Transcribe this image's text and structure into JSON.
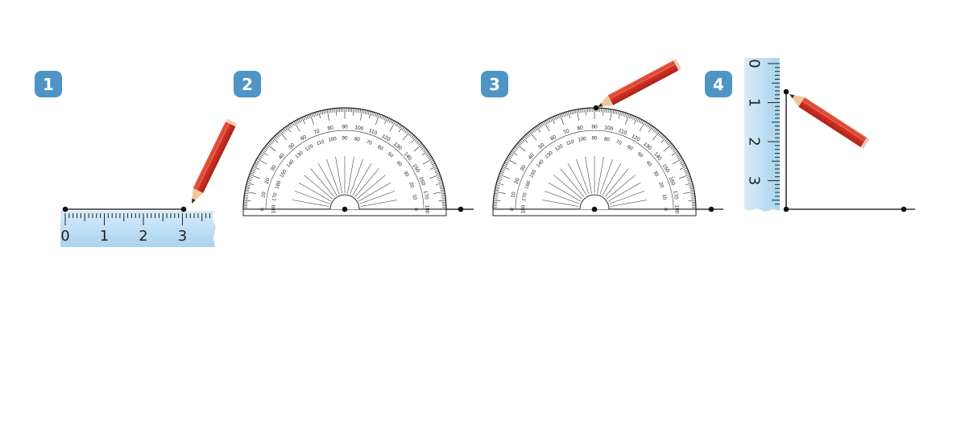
{
  "steps": [
    {
      "number": "1"
    },
    {
      "number": "2"
    },
    {
      "number": "3"
    },
    {
      "number": "4"
    }
  ],
  "ruler": {
    "labels": [
      "0",
      "1",
      "2",
      "3"
    ]
  },
  "protractor": {
    "outer_labels": [
      "0",
      "10",
      "20",
      "30",
      "40",
      "50",
      "60",
      "70",
      "80",
      "90",
      "100",
      "110",
      "120",
      "130",
      "140",
      "150",
      "160",
      "170",
      "180"
    ],
    "inner_labels": [
      "180",
      "170",
      "160",
      "150",
      "140",
      "130",
      "120",
      "110",
      "100",
      "90",
      "80",
      "70",
      "60",
      "50",
      "40",
      "30",
      "20",
      "10",
      "0"
    ]
  },
  "colors": {
    "badge": "#4e95c5",
    "ruler_fill": "#bfe0f2",
    "pencil_body": "#d8392b",
    "line": "#333333"
  }
}
